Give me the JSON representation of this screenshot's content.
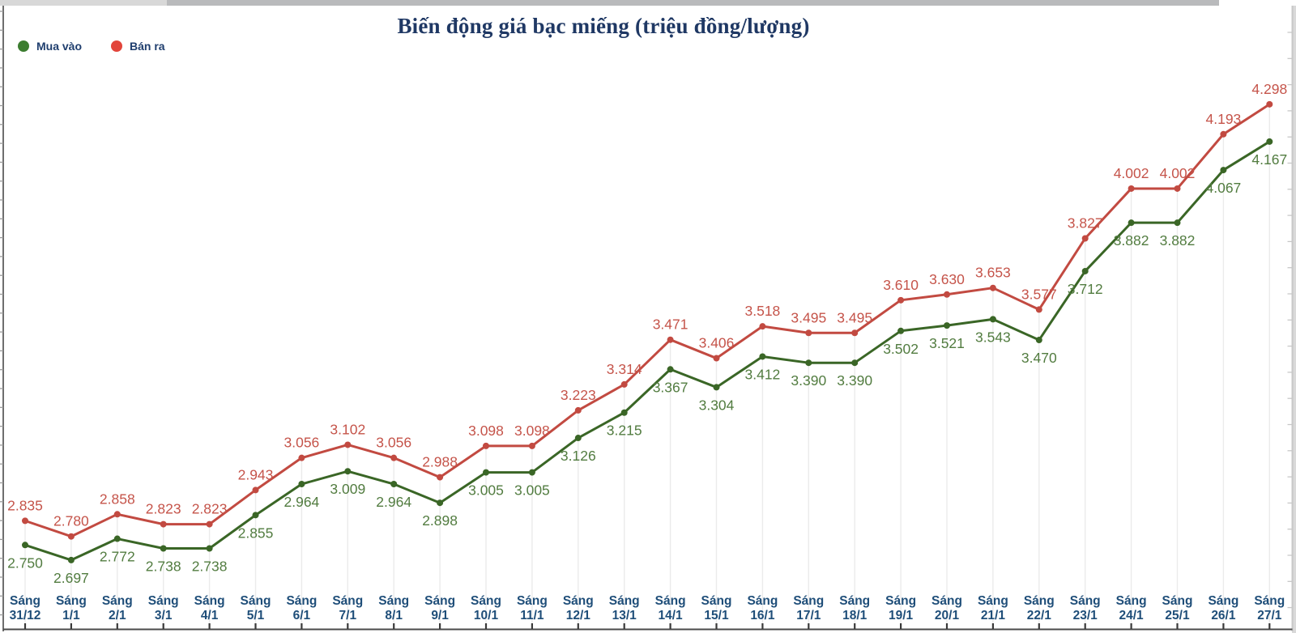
{
  "title": "Biến động giá bạc miếng (triệu đồng/lượng)",
  "legend": {
    "items": [
      {
        "label": "Mua vào",
        "color": "#3c7d30"
      },
      {
        "label": "Bán ra",
        "color": "#e2453b"
      }
    ]
  },
  "chart_data": {
    "type": "line",
    "title": "Biến động giá bạc miếng (triệu đồng/lượng)",
    "xlabel": "",
    "ylabel": "triệu đồng/lượng",
    "x_tick_prefix": "Sáng",
    "categories": [
      "31/12",
      "1/1",
      "2/1",
      "3/1",
      "4/1",
      "5/1",
      "6/1",
      "7/1",
      "8/1",
      "9/1",
      "10/1",
      "11/1",
      "12/1",
      "13/1",
      "14/1",
      "15/1",
      "16/1",
      "17/1",
      "18/1",
      "19/1",
      "20/1",
      "21/1",
      "22/1",
      "23/1",
      "24/1",
      "25/1",
      "26/1",
      "27/1"
    ],
    "series": [
      {
        "name": "Mua vào",
        "color": "#3a6626",
        "label_color": "#527c40",
        "values": [
          2.75,
          2.697,
          2.772,
          2.738,
          2.738,
          2.855,
          2.964,
          3.009,
          2.964,
          2.898,
          3.005,
          3.005,
          3.126,
          3.215,
          3.367,
          3.304,
          3.412,
          3.39,
          3.39,
          3.502,
          3.521,
          3.543,
          3.47,
          3.712,
          3.882,
          3.882,
          4.067,
          4.167
        ]
      },
      {
        "name": "Bán ra",
        "color": "#c24a41",
        "label_color": "#c5544a",
        "values": [
          2.835,
          2.78,
          2.858,
          2.823,
          2.823,
          2.943,
          3.056,
          3.102,
          3.056,
          2.988,
          3.098,
          3.098,
          3.223,
          3.314,
          3.471,
          3.406,
          3.518,
          3.495,
          3.495,
          3.61,
          3.63,
          3.653,
          3.577,
          3.827,
          4.002,
          4.002,
          4.193,
          4.298
        ]
      }
    ],
    "value_decimals": 3,
    "ylim": [
      2.475,
      4.38
    ],
    "grid": "faint vertical drop-lines from each point to x-axis",
    "legend_position": "top-left",
    "data_labels": "every point; Bán ra above points, Mua vào below points",
    "tick_color": "#1f4e79",
    "axis_text_color": "#1f4e79"
  }
}
